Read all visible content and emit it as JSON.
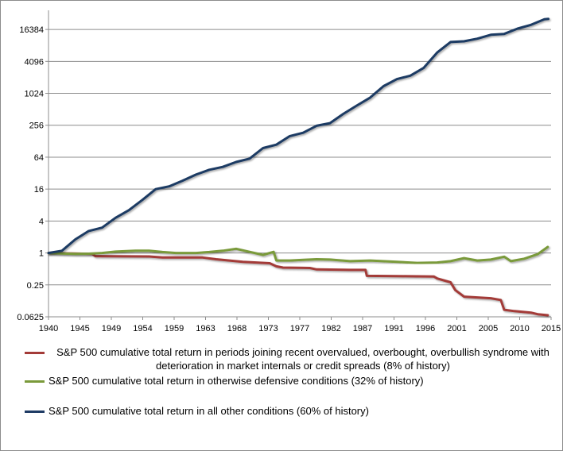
{
  "chart_data": {
    "type": "line",
    "title": "",
    "xlabel": "",
    "ylabel": "",
    "y_scale": "log2",
    "ylim": [
      0.0625,
      32768
    ],
    "xlim": [
      1940,
      2015
    ],
    "x_ticks": [
      "1940",
      "1945",
      "1949",
      "1954",
      "1959",
      "1963",
      "1968",
      "1973",
      "1977",
      "1982",
      "1987",
      "1991",
      "1996",
      "2001",
      "2005",
      "2010",
      "2015"
    ],
    "y_ticks": [
      "16384",
      "4096",
      "1024",
      "256",
      "64",
      "16",
      "4",
      "1",
      "0.25",
      "0.0625"
    ],
    "grid": "horizontal",
    "legend_position": "bottom",
    "series": [
      {
        "name": "S&P 500 cumulative total return in periods joining recent overvalued, overbought, overbullish syndrome with deterioration in market internals or credit spreads (8% of history)",
        "color": "#a33b38",
        "x": [
          1940,
          1946.5,
          1947,
          1955,
          1957,
          1963,
          1965,
          1967,
          1969,
          1973,
          1974,
          1975,
          1979,
          1980,
          1985,
          1987.3,
          1987.5,
          1997.5,
          1998,
          2000,
          2000.7,
          2002,
          2006,
          2007.5,
          2008,
          2009.5,
          2012,
          2013,
          2014.5
        ],
        "y": [
          1,
          0.96,
          0.87,
          0.86,
          0.82,
          0.82,
          0.76,
          0.72,
          0.68,
          0.64,
          0.56,
          0.53,
          0.52,
          0.49,
          0.48,
          0.48,
          0.37,
          0.36,
          0.33,
          0.28,
          0.2,
          0.15,
          0.14,
          0.13,
          0.085,
          0.08,
          0.075,
          0.07,
          0.067
        ]
      },
      {
        "name": "S&P 500 cumulative total return in otherwise defensive conditions (32% of history)",
        "color": "#7a9a3a",
        "x": [
          1940,
          1942,
          1944,
          1946,
          1948,
          1950,
          1953,
          1955,
          1957,
          1959,
          1962,
          1964,
          1966,
          1968,
          1970,
          1972,
          1973.6,
          1974,
          1976,
          1980,
          1982,
          1985,
          1988,
          1992,
          1995,
          1998,
          2000,
          2002,
          2004,
          2006,
          2008,
          2009,
          2011,
          2013,
          2014.5
        ],
        "y": [
          1,
          0.98,
          0.96,
          0.97,
          1.0,
          1.06,
          1.1,
          1.1,
          1.04,
          1.0,
          1.0,
          1.04,
          1.1,
          1.2,
          1.05,
          0.92,
          1.05,
          0.72,
          0.72,
          0.76,
          0.75,
          0.7,
          0.72,
          0.68,
          0.65,
          0.66,
          0.7,
          0.8,
          0.72,
          0.75,
          0.85,
          0.7,
          0.78,
          0.95,
          1.3
        ]
      },
      {
        "name": "S&P 500 cumulative total return in all other conditions (60% of history)",
        "color": "#1e3b64",
        "x": [
          1940,
          1942,
          1944,
          1946,
          1948,
          1950,
          1952,
          1954,
          1956,
          1958,
          1960,
          1962,
          1964,
          1966,
          1968,
          1970,
          1972,
          1974,
          1976,
          1978,
          1980,
          1982,
          1984,
          1986,
          1988,
          1990,
          1992,
          1994,
          1996,
          1998,
          2000,
          2002,
          2004,
          2006,
          2008,
          2010,
          2012,
          2014,
          2014.6
        ],
        "y": [
          1,
          1.1,
          1.8,
          2.6,
          3.0,
          4.6,
          6.4,
          10,
          16,
          18,
          23,
          30,
          37,
          42,
          52,
          60,
          95,
          110,
          160,
          185,
          250,
          280,
          420,
          600,
          850,
          1400,
          1900,
          2200,
          3100,
          6000,
          9500,
          9800,
          11000,
          13000,
          13500,
          17000,
          20000,
          25500,
          26000
        ]
      }
    ]
  }
}
